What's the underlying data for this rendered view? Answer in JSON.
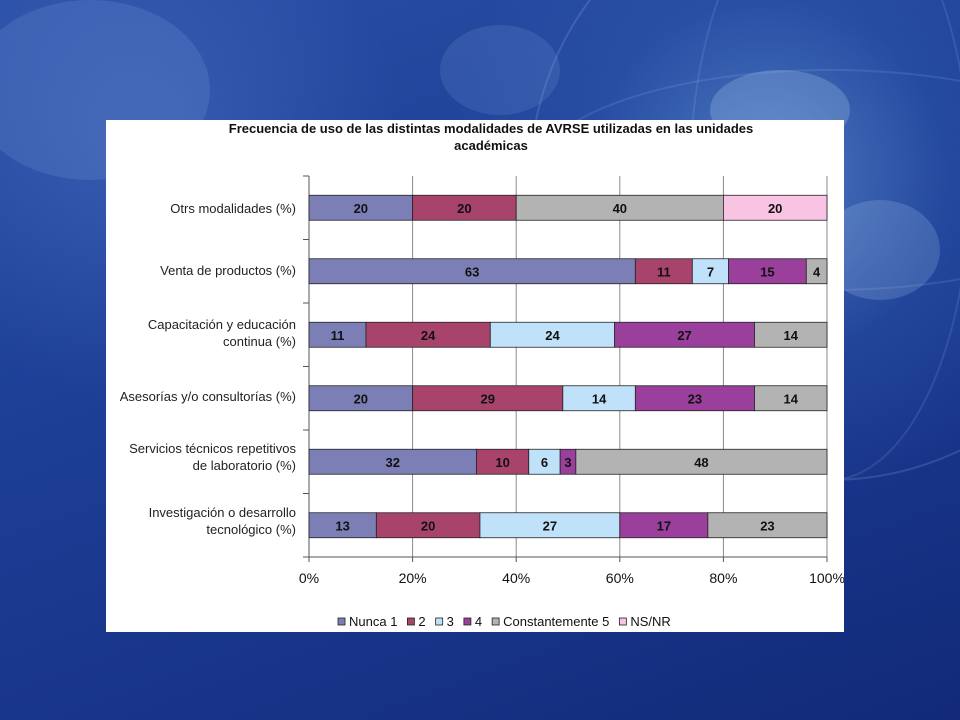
{
  "chart_data": {
    "type": "bar",
    "orientation": "horizontal",
    "stacked": "percent",
    "title_line1": "Frecuencia de uso de las distintas modalidades de  AVRSE utilizadas en las unidades",
    "title_line2": "académicas",
    "categories": [
      {
        "line1": "Otrs modalidades (%)",
        "line2": ""
      },
      {
        "line1": "Venta de productos (%)",
        "line2": ""
      },
      {
        "line1": "Capacitación y educación",
        "line2": "continua (%)"
      },
      {
        "line1": "Asesorías y/o consultorías (%)",
        "line2": ""
      },
      {
        "line1": "Servicios técnicos repetitivos",
        "line2": "de laboratorio (%)"
      },
      {
        "line1": "Investigación o desarrollo",
        "line2": "tecnológico (%)"
      }
    ],
    "series": [
      {
        "name": "Nunca 1",
        "color": "#7b7fb6",
        "values": [
          20,
          63,
          11,
          20,
          32,
          13
        ]
      },
      {
        "name": "2",
        "color": "#a8446b",
        "values": [
          20,
          11,
          24,
          29,
          10,
          20
        ]
      },
      {
        "name": "3",
        "color": "#bfe2fa",
        "values": [
          0,
          7,
          24,
          14,
          6,
          27
        ]
      },
      {
        "name": "4",
        "color": "#9a3f9c",
        "values": [
          0,
          15,
          27,
          23,
          3,
          17
        ]
      },
      {
        "name": "Constantemente 5",
        "color": "#b3b3b3",
        "values": [
          40,
          4,
          14,
          14,
          48,
          23
        ]
      },
      {
        "name": "NS/NR",
        "color": "#f9c3e3",
        "values": [
          20,
          0,
          0,
          0,
          0,
          0
        ]
      }
    ],
    "x_ticks": [
      "0%",
      "20%",
      "40%",
      "60%",
      "80%",
      "100%"
    ],
    "xlim": [
      0,
      100
    ],
    "legend_position": "bottom",
    "grid": "vertical"
  }
}
